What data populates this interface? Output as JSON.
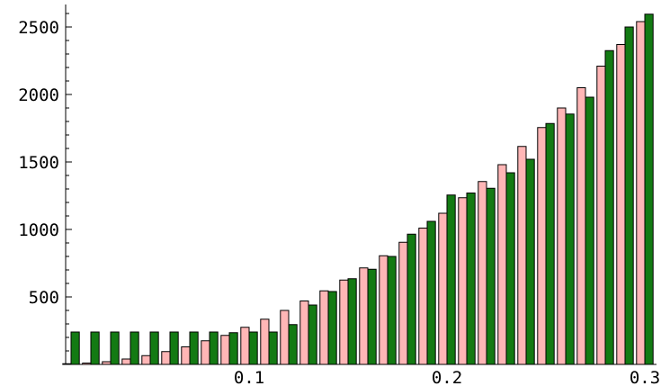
{
  "chart_data": {
    "type": "bar",
    "x": [
      0.01,
      0.02,
      0.03,
      0.04,
      0.05,
      0.06,
      0.07,
      0.08,
      0.09,
      0.1,
      0.11,
      0.12,
      0.13,
      0.14,
      0.15,
      0.16,
      0.17,
      0.18,
      0.19,
      0.2,
      0.21,
      0.22,
      0.23,
      0.24,
      0.25,
      0.26,
      0.27,
      0.28,
      0.29,
      0.3
    ],
    "series": [
      {
        "color": "#ffb6b6",
        "values": [
          5,
          10,
          20,
          40,
          65,
          95,
          130,
          175,
          215,
          275,
          335,
          400,
          470,
          545,
          625,
          715,
          805,
          905,
          1010,
          1120,
          1235,
          1355,
          1480,
          1615,
          1755,
          1900,
          2050,
          2210,
          2370,
          2540
        ]
      },
      {
        "color": "#137a13",
        "values": [
          240,
          240,
          240,
          240,
          240,
          240,
          240,
          240,
          235,
          240,
          240,
          295,
          440,
          540,
          635,
          705,
          800,
          965,
          1060,
          1255,
          1270,
          1305,
          1420,
          1520,
          1785,
          1855,
          1980,
          2325,
          2500,
          2595
        ]
      }
    ],
    "xlim": [
      0.005,
      0.305
    ],
    "ylim": [
      0,
      2650
    ],
    "xticks": [
      0.1,
      0.2,
      0.3
    ],
    "xtick_labels": [
      "0.1",
      "0.2",
      "0.3"
    ],
    "yticks": [
      500,
      1000,
      1500,
      2000,
      2500
    ],
    "ytick_labels": [
      "500",
      "1000",
      "1500",
      "2000",
      "2500"
    ],
    "title": "",
    "xlabel": "",
    "ylabel": "",
    "grid": false,
    "legend": "none"
  }
}
